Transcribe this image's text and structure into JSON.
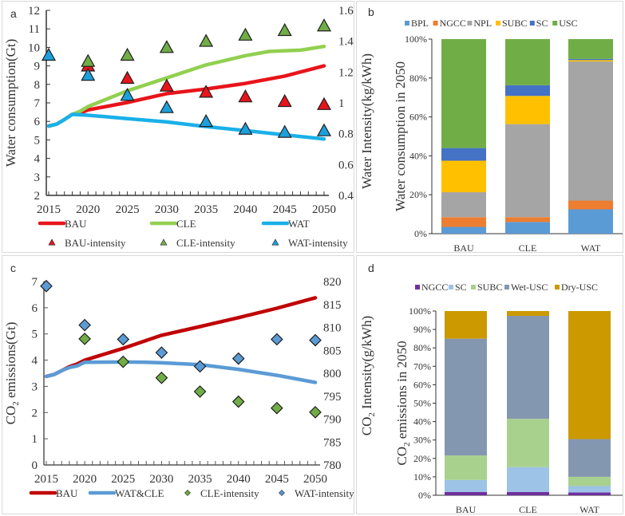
{
  "chart_data": [
    {
      "panel_label": "a",
      "type": "line",
      "x": [
        2015,
        2016,
        2017,
        2018,
        2019,
        2020,
        2021,
        2022,
        2023,
        2024,
        2025,
        2026,
        2027,
        2028,
        2029,
        2030,
        2031,
        2032,
        2033,
        2034,
        2035,
        2036,
        2037,
        2038,
        2039,
        2040,
        2041,
        2042,
        2043,
        2044,
        2045,
        2046,
        2047,
        2048,
        2049,
        2050
      ],
      "x_ticks": [
        "2015",
        "2020",
        "2025",
        "2030",
        "2035",
        "2040",
        "2045",
        "2050"
      ],
      "xlim": [
        2015,
        2050
      ],
      "ylabel": "Water consumption(Gt)",
      "ylim": [
        2,
        12
      ],
      "y_ticks": [
        "2",
        "3",
        "4",
        "5",
        "6",
        "7",
        "8",
        "9",
        "10",
        "11",
        "12"
      ],
      "y2label": "Water  Intensity(kg/kWh)",
      "y2lim": [
        0.4,
        1.6
      ],
      "y2_ticks": [
        "0.4",
        "0.6",
        "0.8",
        "1",
        "1.2",
        "1.4",
        "1.6"
      ],
      "series": [
        {
          "name": "BAU",
          "color": "#e8141b",
          "values_by_year": {
            "2015": 5.75,
            "2016": 5.85,
            "2017": 6.1,
            "2018": 6.38,
            "2019": 6.45,
            "2020": 6.62,
            "2025": 7.02,
            "2030": 7.5,
            "2035": 7.75,
            "2040": 8.05,
            "2045": 8.45,
            "2050": 9.0
          }
        },
        {
          "name": "CLE",
          "color": "#92d050",
          "values_by_year": {
            "2015": 5.75,
            "2016": 5.85,
            "2017": 6.1,
            "2018": 6.38,
            "2019": 6.55,
            "2020": 6.8,
            "2025": 7.65,
            "2030": 8.35,
            "2035": 9.05,
            "2040": 9.55,
            "2043": 9.78,
            "2045": 9.82,
            "2047": 9.85,
            "2050": 10.05
          }
        },
        {
          "name": "WAT",
          "color": "#1ab0e8",
          "values_by_year": {
            "2015": 5.75,
            "2016": 5.85,
            "2017": 6.1,
            "2018": 6.38,
            "2020": 6.33,
            "2025": 6.15,
            "2030": 5.97,
            "2035": 5.72,
            "2040": 5.5,
            "2045": 5.27,
            "2050": 5.05
          }
        }
      ],
      "intensity_series": [
        {
          "name": "BAU-intensity",
          "color": "#e8141b",
          "axis": "right",
          "x": [
            2020,
            2025,
            2030,
            2035,
            2040,
            2045,
            2050
          ],
          "values": [
            1.24,
            1.16,
            1.11,
            1.07,
            1.04,
            1.01,
            0.99
          ]
        },
        {
          "name": "CLE-intensity",
          "color": "#70ad47",
          "axis": "right",
          "x": [
            2020,
            2025,
            2030,
            2035,
            2040,
            2045,
            2050
          ],
          "values": [
            1.27,
            1.31,
            1.36,
            1.4,
            1.44,
            1.47,
            1.5
          ]
        },
        {
          "name": "WAT-intensity",
          "color": "#1ca0dc",
          "axis": "right",
          "x": [
            2015,
            2020,
            2025,
            2030,
            2035,
            2040,
            2045,
            2050
          ],
          "values": [
            1.31,
            1.18,
            1.05,
            0.97,
            0.88,
            0.83,
            0.81,
            0.82
          ]
        }
      ],
      "legend": [
        "BAU",
        "CLE",
        "WAT",
        "BAU-intensity",
        "CLE-intensity",
        "WAT-intensity"
      ],
      "legend_position": "bottom"
    },
    {
      "panel_label": "b",
      "type": "bar",
      "stacked": true,
      "categories": [
        "BAU",
        "CLE",
        "WAT"
      ],
      "ylabel": "Water consumption in 2050",
      "ylim": [
        0,
        100
      ],
      "y_ticks": [
        "0%",
        "20%",
        "40%",
        "60%",
        "80%",
        "100%"
      ],
      "series": [
        {
          "name": "BPL",
          "color": "#5b9bd5",
          "values": [
            3.5,
            6.0,
            12.5
          ]
        },
        {
          "name": "NGCC",
          "color": "#ed7d31",
          "values": [
            5.0,
            2.5,
            4.5
          ]
        },
        {
          "name": "NPL",
          "color": "#a5a5a5",
          "values": [
            12.8,
            47.8,
            71.5
          ]
        },
        {
          "name": "SUBC",
          "color": "#ffc000",
          "values": [
            16.2,
            14.5,
            0.7
          ]
        },
        {
          "name": "SC",
          "color": "#4472c4",
          "values": [
            6.5,
            5.5,
            0.6
          ]
        },
        {
          "name": "USC",
          "color": "#70ad47",
          "values": [
            56.0,
            23.7,
            10.2
          ]
        }
      ],
      "legend_position": "top"
    },
    {
      "panel_label": "c",
      "type": "line",
      "x_ticks": [
        "2015",
        "2020",
        "2025",
        "2030",
        "2035",
        "2040",
        "2045",
        "2050"
      ],
      "xlim": [
        2015,
        2050
      ],
      "ylabel": "CO2 emissions(Gt)",
      "ylim": [
        0,
        7
      ],
      "y_ticks": [
        "0",
        "1",
        "2",
        "3",
        "4",
        "5",
        "6",
        "7"
      ],
      "y2label": "CO2 Intensity(g/kWh)",
      "y2lim": [
        780,
        820
      ],
      "y2_ticks": [
        "780",
        "785",
        "790",
        "795",
        "800",
        "805",
        "810",
        "815",
        "820"
      ],
      "series": [
        {
          "name": "BAU",
          "color": "#c00000",
          "values_by_year": {
            "2015": 3.38,
            "2016": 3.45,
            "2017": 3.6,
            "2018": 3.75,
            "2019": 3.85,
            "2020": 4.0,
            "2025": 4.45,
            "2030": 4.95,
            "2035": 5.28,
            "2040": 5.62,
            "2045": 5.98,
            "2050": 6.38
          }
        },
        {
          "name": "WAT&CLE",
          "color": "#5b9bd5",
          "values_by_year": {
            "2015": 3.38,
            "2016": 3.45,
            "2017": 3.6,
            "2018": 3.72,
            "2019": 3.78,
            "2020": 3.92,
            "2025": 3.93,
            "2028": 3.92,
            "2030": 3.9,
            "2035": 3.83,
            "2040": 3.65,
            "2045": 3.42,
            "2050": 3.15
          }
        }
      ],
      "intensity_series": [
        {
          "name": "CLE-intensity",
          "color": "#70ad47",
          "axis": "right",
          "x": [
            2020,
            2025,
            2030,
            2035,
            2040,
            2045,
            2050
          ],
          "values": [
            807.5,
            802.5,
            799.0,
            796.0,
            793.8,
            792.4,
            791.5
          ]
        },
        {
          "name": "WAT-intensity",
          "color": "#5b9bd5",
          "axis": "right",
          "x": [
            2015,
            2020,
            2025,
            2030,
            2035,
            2040,
            2045,
            2050
          ],
          "values": [
            819.0,
            810.5,
            807.4,
            804.5,
            801.5,
            803.2,
            807.4,
            807.2
          ]
        }
      ],
      "legend": [
        "BAU",
        "WAT&CLE",
        "CLE-intensity",
        "WAT-intensity"
      ],
      "legend_position": "bottom"
    },
    {
      "panel_label": "d",
      "type": "bar",
      "stacked": true,
      "categories": [
        "BAU",
        "CLE",
        "WAT"
      ],
      "ylabel": "CO2 emissions in 2050",
      "ylim": [
        0,
        100
      ],
      "y_ticks": [
        "0%",
        "10%",
        "20%",
        "30%",
        "40%",
        "50%",
        "60%",
        "70%",
        "80%",
        "90%",
        "100%"
      ],
      "series": [
        {
          "name": "NGCC",
          "color": "#7030a0",
          "values": [
            1.8,
            1.8,
            1.5
          ]
        },
        {
          "name": "SC",
          "color": "#9dc3e6",
          "values": [
            6.5,
            13.5,
            3.5
          ]
        },
        {
          "name": "SUBC",
          "color": "#a9d18e",
          "values": [
            13.3,
            26.2,
            5.0
          ]
        },
        {
          "name": "Wet-USC",
          "color": "#8497b0",
          "values": [
            63.4,
            55.9,
            20.5
          ]
        },
        {
          "name": "Dry-USC",
          "color": "#cc9900",
          "values": [
            15.0,
            2.6,
            69.5
          ]
        }
      ],
      "legend_position": "top"
    }
  ],
  "labels": {
    "a_legend_line": [
      "BAU",
      "CLE",
      "WAT"
    ],
    "a_legend_marker": [
      "BAU-intensity",
      "CLE-intensity",
      "WAT-intensity"
    ],
    "c_legend": [
      "BAU",
      "WAT&CLE",
      "CLE-intensity",
      "WAT-intensity"
    ]
  }
}
